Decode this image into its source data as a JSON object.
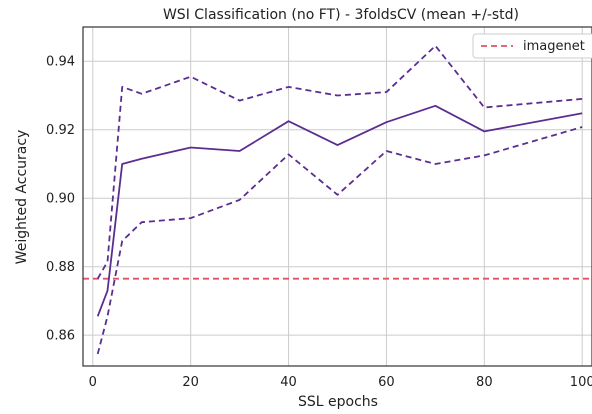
{
  "chart_data": {
    "type": "line",
    "title": "WSI Classification (no FT) - 3foldsCV (mean +/-std)",
    "xlabel": "SSL epochs",
    "ylabel": "Weighted Accuracy",
    "xlim": [
      -2,
      102
    ],
    "ylim": [
      0.851,
      0.95
    ],
    "xticks": [
      0,
      20,
      40,
      60,
      80,
      100
    ],
    "xtick_labels": [
      "0",
      "20",
      "40",
      "60",
      "80",
      "100"
    ],
    "yticks": [
      0.86,
      0.88,
      0.9,
      0.92,
      0.94
    ],
    "ytick_labels": [
      "0.86",
      "0.88",
      "0.90",
      "0.92",
      "0.94"
    ],
    "grid": true,
    "legend_position": "top-right",
    "x": [
      1,
      3,
      6,
      10,
      20,
      30,
      40,
      50,
      60,
      70,
      80,
      100
    ],
    "series": [
      {
        "role": "mean",
        "values": [
          0.8655,
          0.873,
          0.91,
          0.9115,
          0.9148,
          0.9138,
          0.9225,
          0.9155,
          0.9222,
          0.927,
          0.9195,
          0.9248
        ]
      },
      {
        "role": "mean+std",
        "values": [
          0.8765,
          0.8815,
          0.9325,
          0.9305,
          0.9355,
          0.9285,
          0.9325,
          0.93,
          0.931,
          0.9445,
          0.9265,
          0.929
        ]
      },
      {
        "role": "mean-std",
        "values": [
          0.8545,
          0.8655,
          0.8875,
          0.893,
          0.8942,
          0.8995,
          0.9128,
          0.901,
          0.9138,
          0.91,
          0.9125,
          0.9208
        ]
      }
    ],
    "reference_lines": [
      {
        "name": "imagenet",
        "value": 0.8765,
        "color": "#e05260",
        "style": "dashed"
      }
    ],
    "colors": {
      "series": "#5c2d91",
      "reference": "#e05260",
      "grid": "#cccccc",
      "frame": "#333333"
    }
  }
}
